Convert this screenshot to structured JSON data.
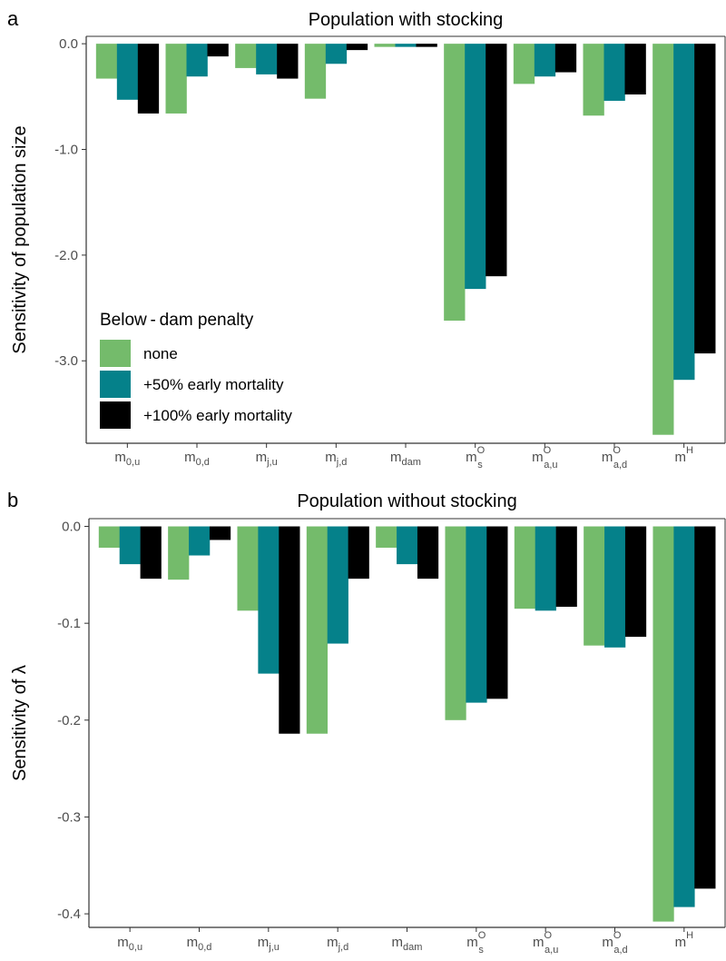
{
  "panel_a": {
    "letter": "a",
    "chart_data": {
      "type": "bar",
      "title": "Population with stocking",
      "ylabel": "Sensitivity of population size",
      "xlabel": "",
      "ylim": [
        -3.78,
        0.07
      ],
      "yticks": [
        0.0,
        -1.0,
        -2.0,
        -3.0
      ],
      "ytick_labels": [
        "0.0",
        "-1.0",
        "-2.0",
        "-3.0"
      ],
      "categories": [
        {
          "base": "m",
          "sub": "0,u",
          "sup": ""
        },
        {
          "base": "m",
          "sub": "0,d",
          "sup": ""
        },
        {
          "base": "m",
          "sub": "j,u",
          "sup": ""
        },
        {
          "base": "m",
          "sub": "j,d",
          "sup": ""
        },
        {
          "base": "m",
          "sub": "dam",
          "sup": ""
        },
        {
          "base": "m",
          "sub": "s",
          "sup": "O"
        },
        {
          "base": "m",
          "sub": "a,u",
          "sup": "O"
        },
        {
          "base": "m",
          "sub": "a,d",
          "sup": "O"
        },
        {
          "base": "m",
          "sub": "",
          "sup": "H"
        }
      ],
      "series": [
        {
          "name": "none",
          "color": "#74bb6b",
          "values": [
            -0.33,
            -0.66,
            -0.23,
            -0.52,
            -0.03,
            -2.62,
            -0.38,
            -0.68,
            -3.7
          ]
        },
        {
          "name": "+50% early mortality",
          "color": "#05818a",
          "values": [
            -0.53,
            -0.31,
            -0.29,
            -0.19,
            -0.03,
            -2.32,
            -0.31,
            -0.54,
            -3.18
          ]
        },
        {
          "name": "+100% early mortality",
          "color": "#000000",
          "values": [
            -0.66,
            -0.12,
            -0.33,
            -0.06,
            -0.03,
            -2.2,
            -0.27,
            -0.48,
            -2.93
          ]
        }
      ],
      "legend": {
        "title": "Below - dam penalty",
        "placement": "bottom-left",
        "entries": [
          "none",
          "+50% early mortality",
          "+100% early mortality"
        ]
      },
      "grid": false
    }
  },
  "panel_b": {
    "letter": "b",
    "chart_data": {
      "type": "bar",
      "title": "Population without stocking",
      "ylabel": "Sensitivity of  λ",
      "xlabel": "",
      "ylim": [
        -0.414,
        0.008
      ],
      "yticks": [
        0.0,
        -0.1,
        -0.2,
        -0.3,
        -0.4
      ],
      "ytick_labels": [
        "0.0",
        "-0.1",
        "-0.2",
        "-0.3",
        "-0.4"
      ],
      "categories": [
        {
          "base": "m",
          "sub": "0,u",
          "sup": ""
        },
        {
          "base": "m",
          "sub": "0,d",
          "sup": ""
        },
        {
          "base": "m",
          "sub": "j,u",
          "sup": ""
        },
        {
          "base": "m",
          "sub": "j,d",
          "sup": ""
        },
        {
          "base": "m",
          "sub": "dam",
          "sup": ""
        },
        {
          "base": "m",
          "sub": "s",
          "sup": "O"
        },
        {
          "base": "m",
          "sub": "a,u",
          "sup": "O"
        },
        {
          "base": "m",
          "sub": "a,d",
          "sup": "O"
        },
        {
          "base": "m",
          "sub": "",
          "sup": "H"
        }
      ],
      "series": [
        {
          "name": "none",
          "color": "#74bb6b",
          "values": [
            -0.022,
            -0.055,
            -0.087,
            -0.214,
            -0.022,
            -0.2,
            -0.085,
            -0.123,
            -0.408
          ]
        },
        {
          "name": "+50% early mortality",
          "color": "#05818a",
          "values": [
            -0.039,
            -0.03,
            -0.152,
            -0.121,
            -0.039,
            -0.182,
            -0.087,
            -0.125,
            -0.393
          ]
        },
        {
          "name": "+100% early mortality",
          "color": "#000000",
          "values": [
            -0.054,
            -0.014,
            -0.214,
            -0.054,
            -0.054,
            -0.178,
            -0.083,
            -0.114,
            -0.374
          ]
        }
      ],
      "grid": false
    }
  }
}
